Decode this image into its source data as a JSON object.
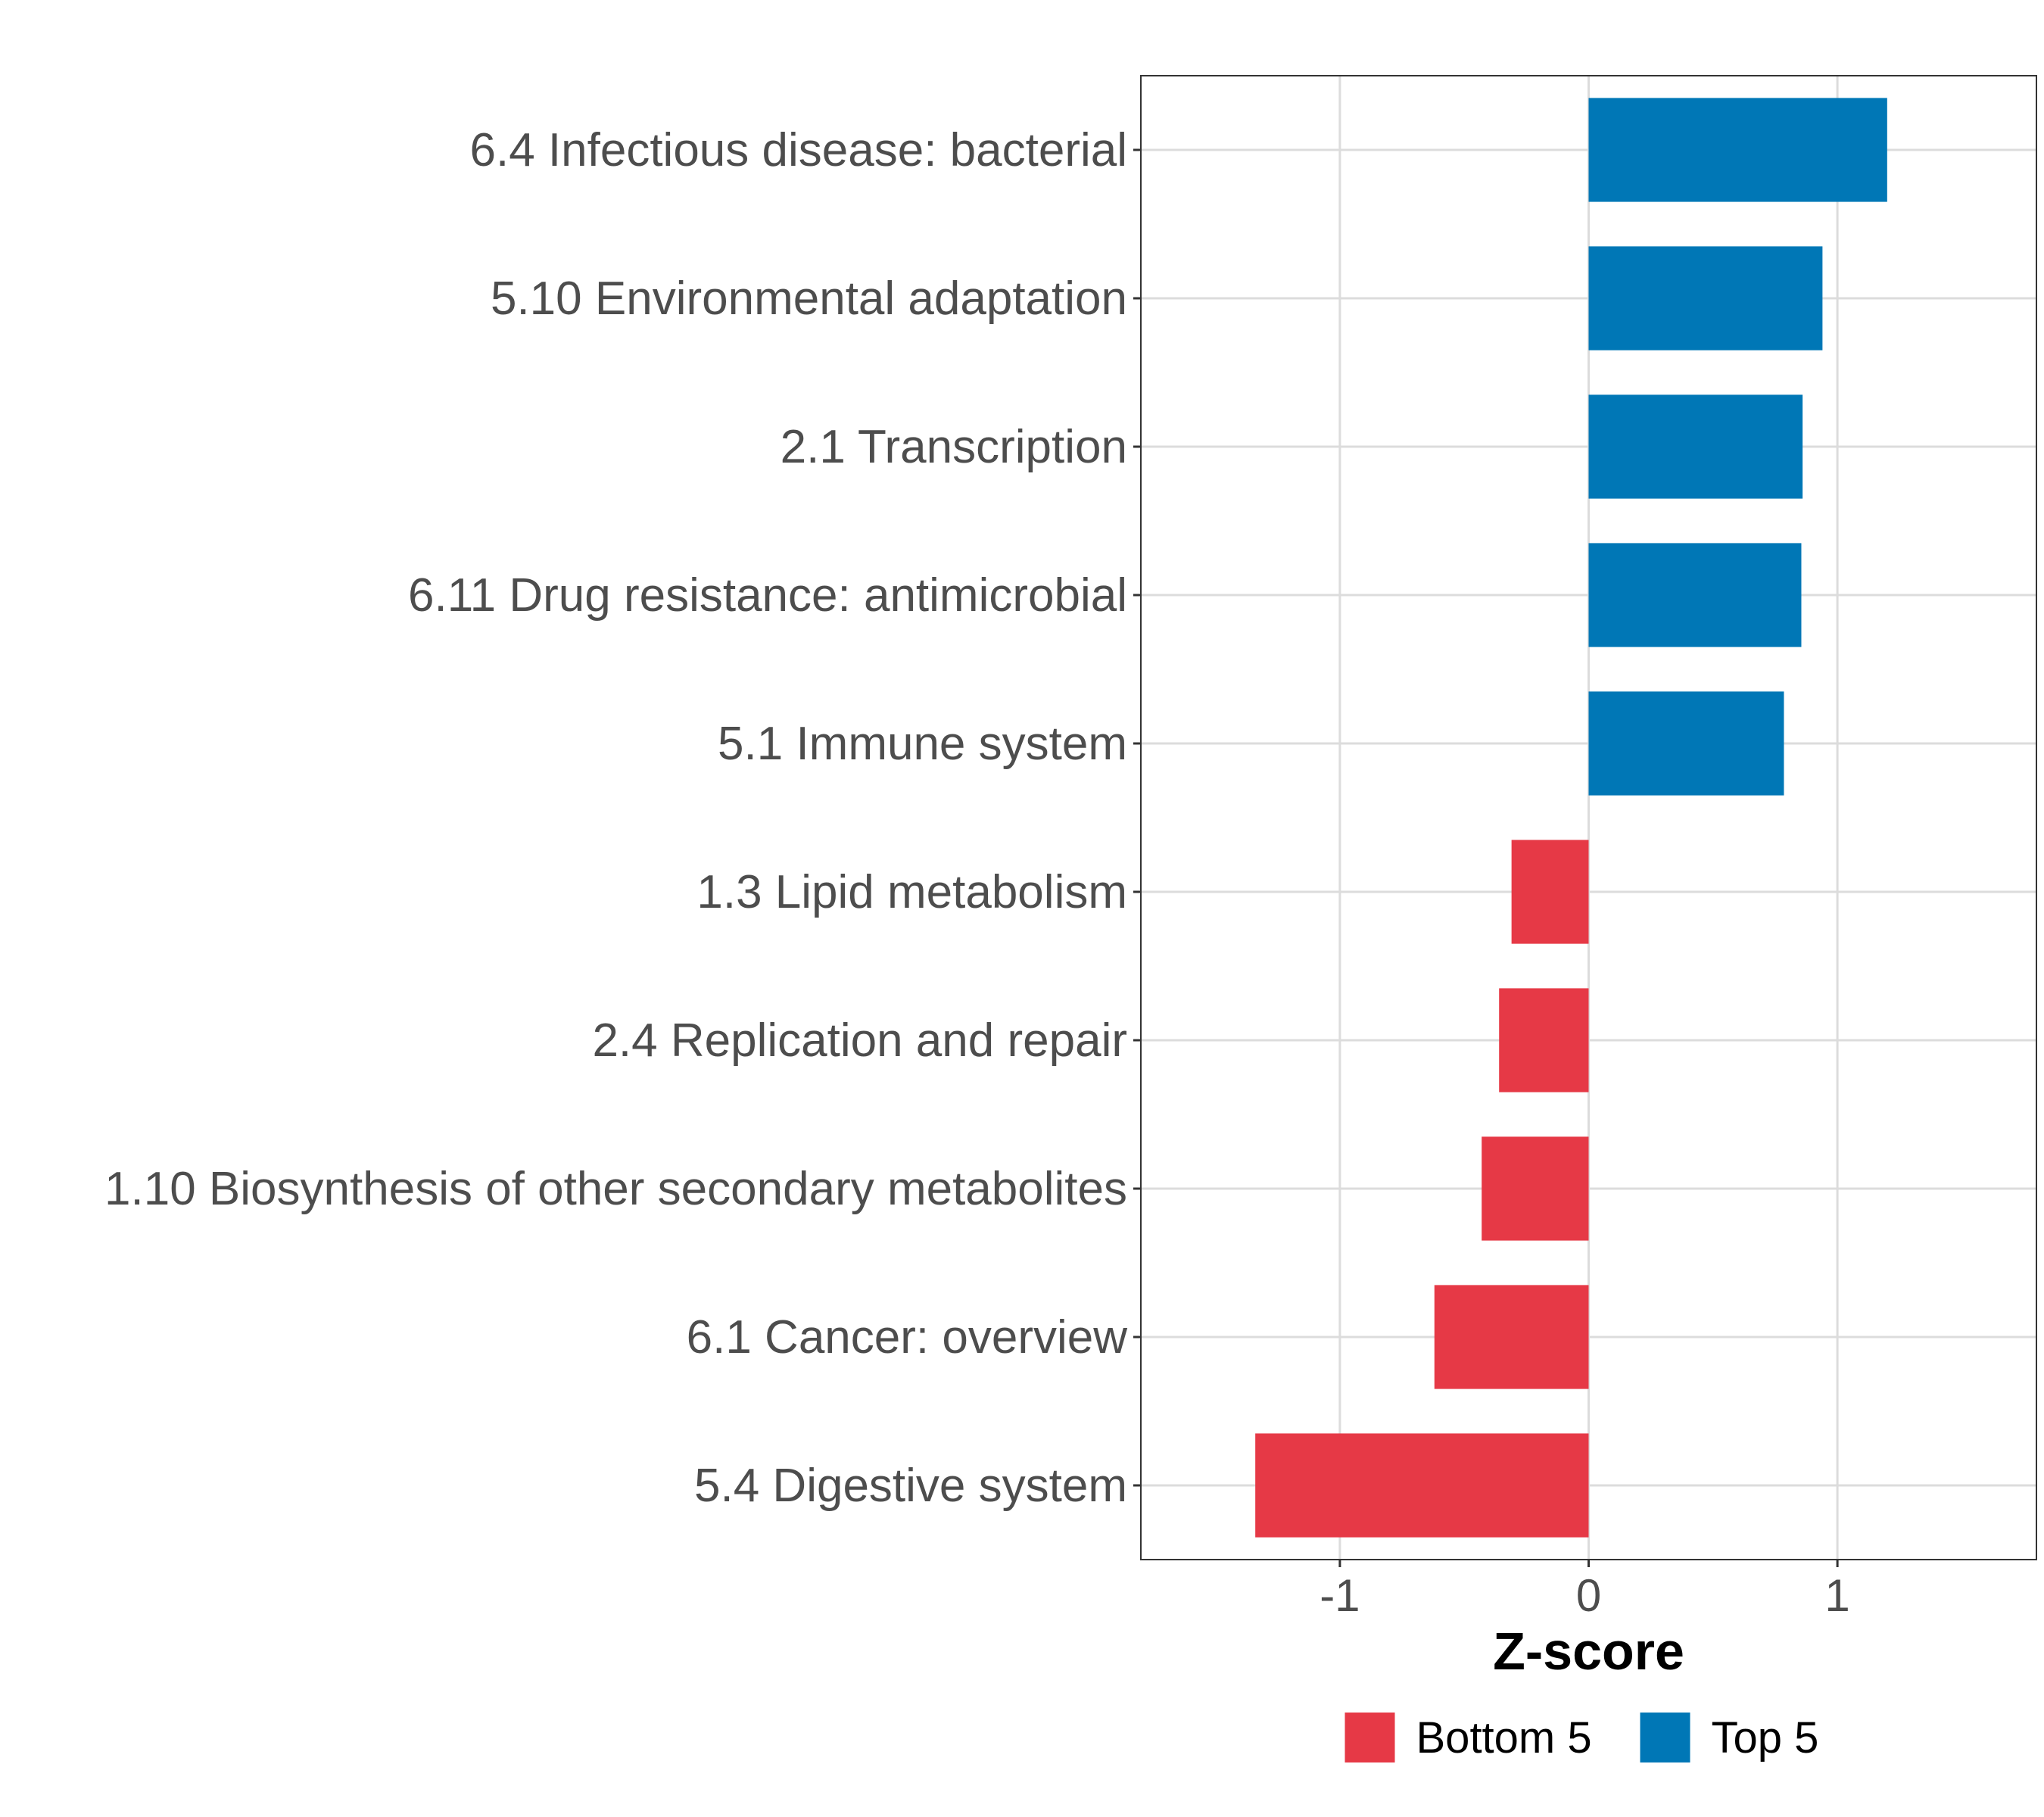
{
  "chart_data": {
    "type": "bar",
    "orientation": "horizontal",
    "title": "",
    "xlabel": "Z-score",
    "ylabel": "",
    "xlim": [
      -1.8,
      1.8
    ],
    "xticks": [
      -1,
      0,
      1
    ],
    "xtick_labels": [
      "-1",
      "0",
      "1"
    ],
    "grid": true,
    "categories": [
      "6.4 Infectious disease: bacterial",
      "5.10 Environmental adaptation",
      "2.1 Transcription",
      "6.11 Drug resistance: antimicrobial",
      "5.1 Immune system",
      "1.3 Lipid metabolism",
      "2.4 Replication and repair",
      "1.10 Biosynthesis of other secondary metabolites",
      "6.1 Cancer: overview",
      "5.4 Digestive system"
    ],
    "values": [
      1.2,
      0.94,
      0.86,
      0.855,
      0.785,
      -0.31,
      -0.36,
      -0.43,
      -0.62,
      -1.34
    ],
    "groups": [
      "Top 5",
      "Top 5",
      "Top 5",
      "Top 5",
      "Top 5",
      "Bottom 5",
      "Bottom 5",
      "Bottom 5",
      "Bottom 5",
      "Bottom 5"
    ],
    "legend": {
      "position": "bottom",
      "entries": [
        {
          "name": "Bottom 5",
          "color": "#E63946"
        },
        {
          "name": "Top 5",
          "color": "#0077B6"
        }
      ]
    }
  }
}
